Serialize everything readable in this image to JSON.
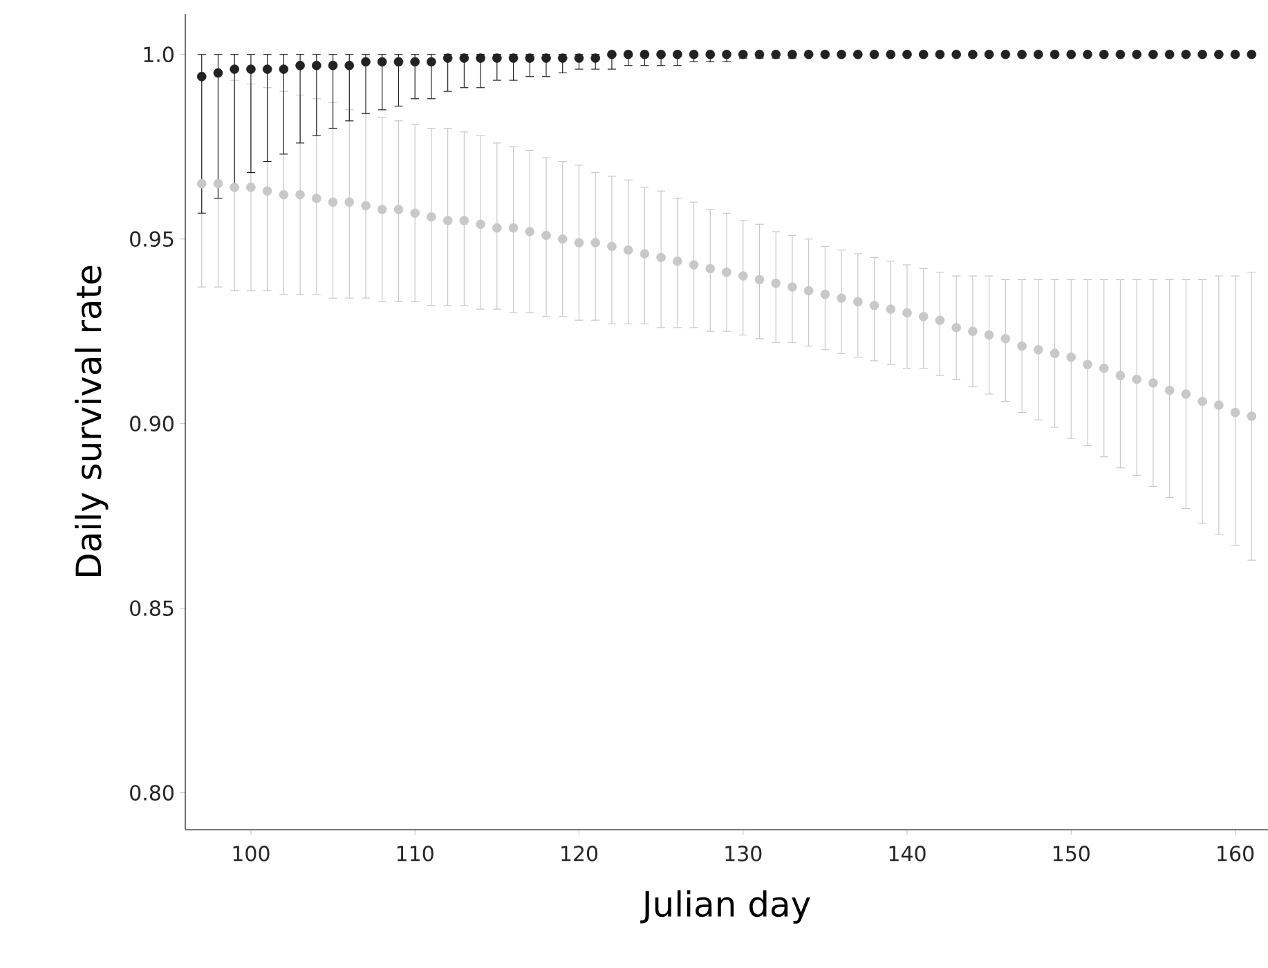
{
  "chart_data": {
    "type": "scatter",
    "xlabel": "Julian day",
    "ylabel": "Daily survival rate",
    "x": [
      97,
      98,
      99,
      100,
      101,
      102,
      103,
      104,
      105,
      106,
      107,
      108,
      109,
      110,
      111,
      112,
      113,
      114,
      115,
      116,
      117,
      118,
      119,
      120,
      121,
      122,
      123,
      124,
      125,
      126,
      127,
      128,
      129,
      130,
      131,
      132,
      133,
      134,
      135,
      136,
      137,
      138,
      139,
      140,
      141,
      142,
      143,
      144,
      145,
      146,
      147,
      148,
      149,
      150,
      151,
      152,
      153,
      154,
      155,
      156,
      157,
      158,
      159,
      160,
      161
    ],
    "series": [
      {
        "color": "#c8c8c8",
        "values": [
          0.965,
          0.965,
          0.964,
          0.964,
          0.963,
          0.962,
          0.962,
          0.961,
          0.96,
          0.96,
          0.959,
          0.958,
          0.958,
          0.957,
          0.956,
          0.955,
          0.955,
          0.954,
          0.953,
          0.953,
          0.952,
          0.951,
          0.95,
          0.949,
          0.949,
          0.948,
          0.947,
          0.946,
          0.945,
          0.944,
          0.943,
          0.942,
          0.941,
          0.94,
          0.939,
          0.938,
          0.937,
          0.936,
          0.935,
          0.934,
          0.933,
          0.932,
          0.931,
          0.93,
          0.929,
          0.928,
          0.926,
          0.925,
          0.924,
          0.923,
          0.921,
          0.92,
          0.919,
          0.918,
          0.916,
          0.915,
          0.913,
          0.912,
          0.911,
          0.909,
          0.908,
          0.906,
          0.905,
          0.903,
          0.902
        ],
        "errors": [
          [
            0.937,
            0.995
          ],
          [
            0.937,
            0.994
          ],
          [
            0.936,
            0.993
          ],
          [
            0.936,
            0.992
          ],
          [
            0.936,
            0.991
          ],
          [
            0.935,
            0.99
          ],
          [
            0.935,
            0.989
          ],
          [
            0.935,
            0.988
          ],
          [
            0.934,
            0.987
          ],
          [
            0.934,
            0.985
          ],
          [
            0.934,
            0.984
          ],
          [
            0.933,
            0.983
          ],
          [
            0.933,
            0.982
          ],
          [
            0.933,
            0.981
          ],
          [
            0.932,
            0.98
          ],
          [
            0.932,
            0.98
          ],
          [
            0.932,
            0.979
          ],
          [
            0.931,
            0.978
          ],
          [
            0.931,
            0.976
          ],
          [
            0.93,
            0.975
          ],
          [
            0.93,
            0.974
          ],
          [
            0.929,
            0.972
          ],
          [
            0.929,
            0.971
          ],
          [
            0.928,
            0.97
          ],
          [
            0.928,
            0.968
          ],
          [
            0.927,
            0.967
          ],
          [
            0.927,
            0.966
          ],
          [
            0.927,
            0.964
          ],
          [
            0.926,
            0.963
          ],
          [
            0.926,
            0.961
          ],
          [
            0.926,
            0.96
          ],
          [
            0.925,
            0.958
          ],
          [
            0.925,
            0.957
          ],
          [
            0.924,
            0.955
          ],
          [
            0.923,
            0.954
          ],
          [
            0.922,
            0.952
          ],
          [
            0.922,
            0.951
          ],
          [
            0.921,
            0.95
          ],
          [
            0.92,
            0.948
          ],
          [
            0.919,
            0.947
          ],
          [
            0.918,
            0.946
          ],
          [
            0.917,
            0.945
          ],
          [
            0.916,
            0.944
          ],
          [
            0.915,
            0.943
          ],
          [
            0.915,
            0.942
          ],
          [
            0.913,
            0.941
          ],
          [
            0.912,
            0.94
          ],
          [
            0.91,
            0.94
          ],
          [
            0.908,
            0.94
          ],
          [
            0.906,
            0.939
          ],
          [
            0.903,
            0.939
          ],
          [
            0.901,
            0.939
          ],
          [
            0.899,
            0.939
          ],
          [
            0.896,
            0.939
          ],
          [
            0.894,
            0.939
          ],
          [
            0.891,
            0.939
          ],
          [
            0.888,
            0.939
          ],
          [
            0.886,
            0.939
          ],
          [
            0.883,
            0.939
          ],
          [
            0.88,
            0.939
          ],
          [
            0.877,
            0.939
          ],
          [
            0.873,
            0.939
          ],
          [
            0.87,
            0.94
          ],
          [
            0.867,
            0.94
          ],
          [
            0.863,
            0.941
          ]
        ]
      },
      {
        "color": "#222222",
        "values": [
          0.994,
          0.995,
          0.996,
          0.996,
          0.996,
          0.996,
          0.997,
          0.997,
          0.997,
          0.997,
          0.998,
          0.998,
          0.998,
          0.998,
          0.998,
          0.999,
          0.999,
          0.999,
          0.999,
          0.999,
          0.999,
          0.999,
          0.999,
          0.999,
          0.999,
          1.0,
          1.0,
          1.0,
          1.0,
          1.0,
          1.0,
          1.0,
          1.0,
          1.0,
          1.0,
          1.0,
          1.0,
          1.0,
          1.0,
          1.0,
          1.0,
          1.0,
          1.0,
          1.0,
          1.0,
          1.0,
          1.0,
          1.0,
          1.0,
          1.0,
          1.0,
          1.0,
          1.0,
          1.0,
          1.0,
          1.0,
          1.0,
          1.0,
          1.0,
          1.0,
          1.0,
          1.0,
          1.0,
          1.0,
          1.0
        ],
        "errors": [
          [
            0.957,
            1.0
          ],
          [
            0.961,
            1.0
          ],
          [
            0.964,
            1.0
          ],
          [
            0.968,
            1.0
          ],
          [
            0.971,
            1.0
          ],
          [
            0.973,
            1.0
          ],
          [
            0.976,
            1.0
          ],
          [
            0.978,
            1.0
          ],
          [
            0.98,
            1.0
          ],
          [
            0.982,
            1.0
          ],
          [
            0.984,
            1.0
          ],
          [
            0.985,
            1.0
          ],
          [
            0.986,
            1.0
          ],
          [
            0.988,
            1.0
          ],
          [
            0.988,
            1.0
          ],
          [
            0.99,
            1.0
          ],
          [
            0.991,
            1.0
          ],
          [
            0.991,
            1.0
          ],
          [
            0.993,
            1.0
          ],
          [
            0.993,
            1.0
          ],
          [
            0.994,
            1.0
          ],
          [
            0.994,
            1.0
          ],
          [
            0.995,
            1.0
          ],
          [
            0.996,
            1.0
          ],
          [
            0.996,
            1.0
          ],
          [
            0.996,
            1.0
          ],
          [
            0.997,
            1.0
          ],
          [
            0.997,
            1.0
          ],
          [
            0.997,
            1.0
          ],
          [
            0.997,
            1.0
          ],
          [
            0.998,
            1.0
          ],
          [
            0.998,
            1.0
          ],
          [
            0.998,
            1.0
          ],
          [
            0.999,
            1.0
          ],
          [
            0.999,
            1.0
          ],
          [
            0.999,
            1.0
          ],
          [
            0.999,
            1.0
          ],
          null,
          null,
          null,
          null,
          null,
          null,
          null,
          null,
          null,
          null,
          null,
          null,
          null,
          null,
          null,
          null,
          null,
          null,
          null,
          null,
          null,
          null,
          null,
          null,
          null,
          null,
          null,
          null
        ]
      }
    ],
    "xlim": [
      96,
      162
    ],
    "ylim": [
      0.79,
      1.011
    ],
    "xticks": [
      100,
      110,
      120,
      130,
      140,
      150,
      160
    ],
    "yticks": [
      {
        "value": 0.8,
        "label": "0.80"
      },
      {
        "value": 0.85,
        "label": "0.85"
      },
      {
        "value": 0.9,
        "label": "0.90"
      },
      {
        "value": 0.95,
        "label": "0.95"
      },
      {
        "value": 1.0,
        "label": "1.0"
      }
    ],
    "marker": "circle",
    "grid": false
  }
}
